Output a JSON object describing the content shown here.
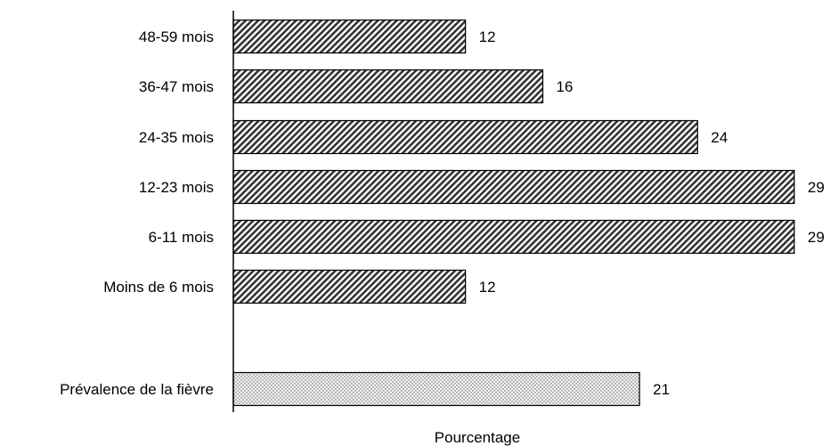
{
  "chart_data": {
    "type": "bar",
    "orientation": "horizontal",
    "xlabel": "Pourcentage",
    "categories": [
      "48-59 mois",
      "36-47 mois",
      "24-35 mois",
      "12-23 mois",
      "6-11 mois",
      "Moins de 6 mois",
      "Prévalence de la fièvre"
    ],
    "values": [
      12,
      16,
      24,
      29,
      29,
      12,
      21
    ],
    "value_labels": [
      "12",
      "16",
      "24",
      "29",
      "29",
      "12",
      "21"
    ],
    "patterns": [
      "hatch",
      "hatch",
      "hatch",
      "hatch",
      "hatch",
      "hatch",
      "dots"
    ],
    "xlim": [
      0,
      29
    ],
    "grid": false,
    "legend": "none",
    "colors": {
      "bar_outline": "#000000",
      "hatch": "#333333",
      "dots": "#555555",
      "background": "#ffffff"
    }
  }
}
